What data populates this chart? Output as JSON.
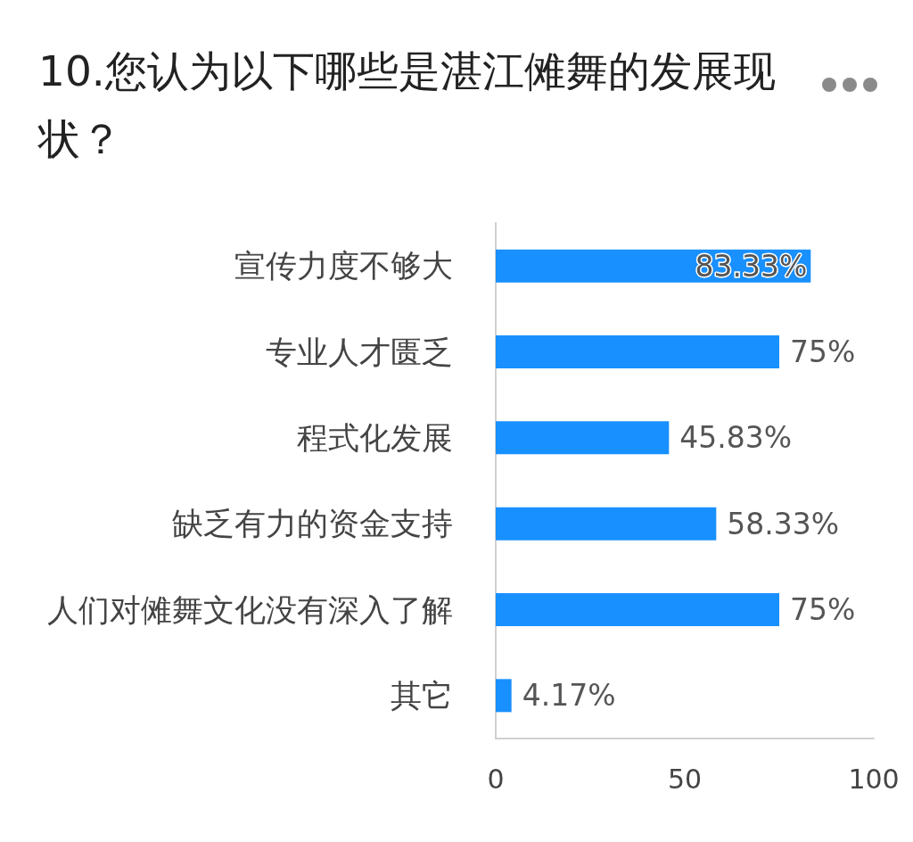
{
  "chart_data": {
    "type": "bar",
    "orientation": "horizontal",
    "title": "10.您认为以下哪些是湛江傩舞的发展现状？",
    "categories": [
      "宣传力度不够大",
      "专业人才匮乏",
      "程式化发展",
      "缺乏有力的资金支持",
      "人们对傩舞文化没有深入了解",
      "其它"
    ],
    "values": [
      83.33,
      75,
      45.83,
      58.33,
      75,
      4.17
    ],
    "value_labels": [
      "83.33%",
      "75%",
      "45.83%",
      "58.33%",
      "75%",
      "4.17%"
    ],
    "color": "#1890ff",
    "xlim": [
      0,
      100
    ],
    "xticks": [
      0,
      50,
      100
    ],
    "grid": false
  }
}
